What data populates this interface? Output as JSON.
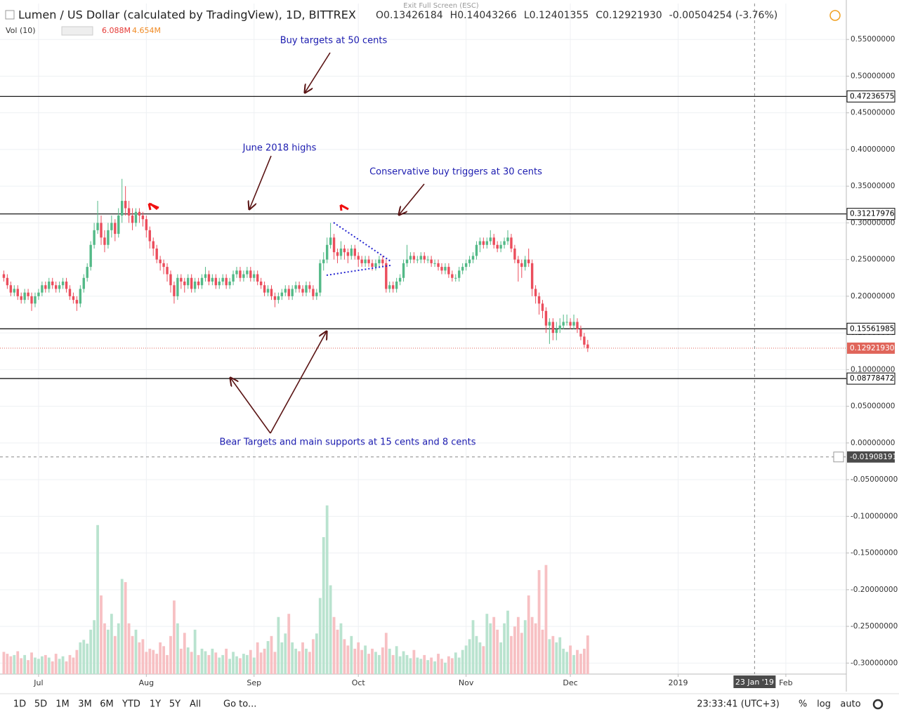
{
  "chart_data": {
    "type": "candlestick",
    "title": "Lumen / US Dollar (calculated by TradingView), 1D, BITTREX",
    "ohlc_legend": [
      {
        "key": "O",
        "value": "0.13426184"
      },
      {
        "key": "H",
        "value": "0.14043266"
      },
      {
        "key": "L",
        "value": "0.12401355"
      },
      {
        "key": "C",
        "value": "0.12921930"
      }
    ],
    "change": "-0.00504254 (-3.76%)",
    "volume_title": "Vol (10)",
    "volume_legend": [
      "6.088M",
      "4.654M"
    ],
    "exit_hint": "Exit Full Screen (ESC)",
    "xlim": [
      -1.1,
      242.4
    ],
    "xticks": [
      {
        "value": 10,
        "label": "Jul"
      },
      {
        "value": 41,
        "label": "Aug"
      },
      {
        "value": 72,
        "label": "Sep"
      },
      {
        "value": 102,
        "label": "Oct"
      },
      {
        "value": 133,
        "label": "Nov"
      },
      {
        "value": 163,
        "label": "Dec"
      },
      {
        "value": 194,
        "label": "2019"
      },
      {
        "value": 225,
        "label": "Feb"
      }
    ],
    "ylim": [
      -0.315,
      0.599
    ],
    "yticks": [
      {
        "value": 0.55,
        "label": "0.55000000"
      },
      {
        "value": 0.5,
        "label": "0.50000000"
      },
      {
        "value": 0.45,
        "label": "0.45000000"
      },
      {
        "value": 0.4,
        "label": "0.40000000"
      },
      {
        "value": 0.35,
        "label": "0.35000000"
      },
      {
        "value": 0.3,
        "label": "0.30000000"
      },
      {
        "value": 0.25,
        "label": "0.25000000"
      },
      {
        "value": 0.2,
        "label": "0.20000000"
      },
      {
        "value": 0.15,
        "label": "0.15000000"
      },
      {
        "value": 0.1,
        "label": "0.10000000"
      },
      {
        "value": 0.05,
        "label": "0.05000000"
      },
      {
        "value": 0,
        "label": "0.00000000"
      },
      {
        "value": -0.05,
        "label": "-0.05000000"
      },
      {
        "value": -0.1,
        "label": "-0.10000000"
      },
      {
        "value": -0.15,
        "label": "-0.15000000"
      },
      {
        "value": -0.2,
        "label": "-0.20000000"
      },
      {
        "value": -0.25,
        "label": "-0.25000000"
      },
      {
        "value": -0.3,
        "label": "-0.30000000"
      }
    ],
    "grid": true,
    "up_color": "#53b987",
    "down_color": "#eb4d5c",
    "vol_up_color": "#b9e3cf",
    "vol_down_color": "#f7c0c3",
    "levels": [
      0.47236575,
      0.31217976,
      0.15561985,
      0.08778472
    ],
    "last_price": {
      "value": 0.1292193,
      "label": "0.12921930"
    },
    "crosshair": {
      "y": -0.01908191,
      "x": {
        "value": 216,
        "label": "23 Jan '19"
      }
    },
    "candles": [
      [
        0.23,
        0.235,
        0.22,
        0.225
      ],
      [
        0.225,
        0.23,
        0.21,
        0.215
      ],
      [
        0.215,
        0.22,
        0.2,
        0.205
      ],
      [
        0.205,
        0.215,
        0.2,
        0.21
      ],
      [
        0.21,
        0.215,
        0.195,
        0.2
      ],
      [
        0.2,
        0.205,
        0.19,
        0.195
      ],
      [
        0.195,
        0.21,
        0.19,
        0.205
      ],
      [
        0.205,
        0.21,
        0.195,
        0.2
      ],
      [
        0.2,
        0.205,
        0.18,
        0.19
      ],
      [
        0.19,
        0.205,
        0.185,
        0.2
      ],
      [
        0.2,
        0.21,
        0.195,
        0.205
      ],
      [
        0.205,
        0.22,
        0.2,
        0.215
      ],
      [
        0.215,
        0.22,
        0.205,
        0.21
      ],
      [
        0.21,
        0.225,
        0.205,
        0.22
      ],
      [
        0.22,
        0.225,
        0.21,
        0.215
      ],
      [
        0.215,
        0.22,
        0.205,
        0.21
      ],
      [
        0.21,
        0.22,
        0.205,
        0.215
      ],
      [
        0.215,
        0.225,
        0.21,
        0.22
      ],
      [
        0.22,
        0.225,
        0.205,
        0.21
      ],
      [
        0.21,
        0.215,
        0.195,
        0.2
      ],
      [
        0.2,
        0.205,
        0.19,
        0.195
      ],
      [
        0.195,
        0.2,
        0.18,
        0.19
      ],
      [
        0.19,
        0.215,
        0.185,
        0.21
      ],
      [
        0.21,
        0.23,
        0.205,
        0.225
      ],
      [
        0.225,
        0.245,
        0.22,
        0.24
      ],
      [
        0.24,
        0.275,
        0.235,
        0.27
      ],
      [
        0.27,
        0.3,
        0.265,
        0.29
      ],
      [
        0.29,
        0.33,
        0.285,
        0.3
      ],
      [
        0.3,
        0.31,
        0.27,
        0.28
      ],
      [
        0.28,
        0.29,
        0.26,
        0.27
      ],
      [
        0.27,
        0.3,
        0.265,
        0.29
      ],
      [
        0.29,
        0.31,
        0.28,
        0.3
      ],
      [
        0.3,
        0.305,
        0.275,
        0.285
      ],
      [
        0.285,
        0.32,
        0.28,
        0.31
      ],
      [
        0.31,
        0.36,
        0.3,
        0.33
      ],
      [
        0.33,
        0.35,
        0.31,
        0.32
      ],
      [
        0.32,
        0.33,
        0.3,
        0.31
      ],
      [
        0.31,
        0.32,
        0.29,
        0.3
      ],
      [
        0.3,
        0.32,
        0.295,
        0.315
      ],
      [
        0.315,
        0.32,
        0.3,
        0.31
      ],
      [
        0.31,
        0.315,
        0.295,
        0.305
      ],
      [
        0.305,
        0.31,
        0.28,
        0.29
      ],
      [
        0.29,
        0.295,
        0.265,
        0.275
      ],
      [
        0.275,
        0.28,
        0.255,
        0.265
      ],
      [
        0.265,
        0.27,
        0.245,
        0.25
      ],
      [
        0.25,
        0.255,
        0.235,
        0.245
      ],
      [
        0.245,
        0.25,
        0.23,
        0.24
      ],
      [
        0.24,
        0.245,
        0.22,
        0.23
      ],
      [
        0.23,
        0.235,
        0.205,
        0.215
      ],
      [
        0.215,
        0.22,
        0.19,
        0.2
      ],
      [
        0.2,
        0.23,
        0.195,
        0.225
      ],
      [
        0.225,
        0.23,
        0.21,
        0.22
      ],
      [
        0.22,
        0.225,
        0.205,
        0.215
      ],
      [
        0.215,
        0.23,
        0.21,
        0.225
      ],
      [
        0.225,
        0.23,
        0.205,
        0.21
      ],
      [
        0.21,
        0.225,
        0.205,
        0.22
      ],
      [
        0.22,
        0.225,
        0.21,
        0.215
      ],
      [
        0.215,
        0.23,
        0.21,
        0.225
      ],
      [
        0.225,
        0.24,
        0.22,
        0.23
      ],
      [
        0.23,
        0.235,
        0.215,
        0.22
      ],
      [
        0.22,
        0.23,
        0.215,
        0.225
      ],
      [
        0.225,
        0.23,
        0.21,
        0.215
      ],
      [
        0.215,
        0.225,
        0.21,
        0.22
      ],
      [
        0.22,
        0.23,
        0.215,
        0.225
      ],
      [
        0.225,
        0.23,
        0.21,
        0.215
      ],
      [
        0.215,
        0.225,
        0.21,
        0.22
      ],
      [
        0.22,
        0.235,
        0.215,
        0.23
      ],
      [
        0.23,
        0.24,
        0.225,
        0.235
      ],
      [
        0.235,
        0.24,
        0.22,
        0.225
      ],
      [
        0.225,
        0.235,
        0.22,
        0.23
      ],
      [
        0.23,
        0.24,
        0.225,
        0.235
      ],
      [
        0.235,
        0.24,
        0.22,
        0.225
      ],
      [
        0.225,
        0.235,
        0.22,
        0.23
      ],
      [
        0.23,
        0.235,
        0.215,
        0.22
      ],
      [
        0.22,
        0.225,
        0.21,
        0.215
      ],
      [
        0.215,
        0.22,
        0.2,
        0.205
      ],
      [
        0.205,
        0.215,
        0.2,
        0.21
      ],
      [
        0.21,
        0.215,
        0.195,
        0.2
      ],
      [
        0.2,
        0.205,
        0.185,
        0.195
      ],
      [
        0.195,
        0.205,
        0.19,
        0.2
      ],
      [
        0.2,
        0.21,
        0.195,
        0.205
      ],
      [
        0.205,
        0.215,
        0.2,
        0.21
      ],
      [
        0.21,
        0.215,
        0.195,
        0.2
      ],
      [
        0.2,
        0.215,
        0.195,
        0.21
      ],
      [
        0.21,
        0.22,
        0.205,
        0.215
      ],
      [
        0.215,
        0.22,
        0.205,
        0.21
      ],
      [
        0.21,
        0.215,
        0.2,
        0.205
      ],
      [
        0.205,
        0.22,
        0.2,
        0.215
      ],
      [
        0.215,
        0.22,
        0.205,
        0.21
      ],
      [
        0.21,
        0.215,
        0.195,
        0.2
      ],
      [
        0.2,
        0.21,
        0.195,
        0.205
      ],
      [
        0.205,
        0.25,
        0.2,
        0.245
      ],
      [
        0.245,
        0.26,
        0.235,
        0.25
      ],
      [
        0.25,
        0.28,
        0.245,
        0.27
      ],
      [
        0.27,
        0.3,
        0.265,
        0.28
      ],
      [
        0.28,
        0.285,
        0.25,
        0.26
      ],
      [
        0.26,
        0.265,
        0.245,
        0.255
      ],
      [
        0.255,
        0.275,
        0.25,
        0.265
      ],
      [
        0.265,
        0.27,
        0.25,
        0.26
      ],
      [
        0.26,
        0.265,
        0.245,
        0.255
      ],
      [
        0.255,
        0.27,
        0.25,
        0.265
      ],
      [
        0.265,
        0.27,
        0.25,
        0.255
      ],
      [
        0.255,
        0.26,
        0.24,
        0.25
      ],
      [
        0.25,
        0.255,
        0.24,
        0.245
      ],
      [
        0.245,
        0.255,
        0.24,
        0.25
      ],
      [
        0.25,
        0.255,
        0.24,
        0.245
      ],
      [
        0.245,
        0.25,
        0.235,
        0.24
      ],
      [
        0.24,
        0.25,
        0.235,
        0.245
      ],
      [
        0.245,
        0.255,
        0.24,
        0.25
      ],
      [
        0.25,
        0.255,
        0.24,
        0.245
      ],
      [
        0.245,
        0.25,
        0.205,
        0.21
      ],
      [
        0.21,
        0.22,
        0.205,
        0.215
      ],
      [
        0.215,
        0.22,
        0.205,
        0.21
      ],
      [
        0.21,
        0.225,
        0.205,
        0.22
      ],
      [
        0.22,
        0.23,
        0.215,
        0.225
      ],
      [
        0.225,
        0.25,
        0.22,
        0.245
      ],
      [
        0.245,
        0.27,
        0.24,
        0.25
      ],
      [
        0.25,
        0.26,
        0.245,
        0.255
      ],
      [
        0.255,
        0.26,
        0.245,
        0.25
      ],
      [
        0.25,
        0.255,
        0.245,
        0.25
      ],
      [
        0.25,
        0.26,
        0.245,
        0.255
      ],
      [
        0.255,
        0.26,
        0.245,
        0.25
      ],
      [
        0.25,
        0.255,
        0.245,
        0.25
      ],
      [
        0.25,
        0.255,
        0.24,
        0.245
      ],
      [
        0.245,
        0.25,
        0.24,
        0.245
      ],
      [
        0.245,
        0.25,
        0.235,
        0.24
      ],
      [
        0.24,
        0.245,
        0.23,
        0.235
      ],
      [
        0.235,
        0.245,
        0.23,
        0.24
      ],
      [
        0.24,
        0.245,
        0.225,
        0.23
      ],
      [
        0.23,
        0.235,
        0.22,
        0.225
      ],
      [
        0.225,
        0.23,
        0.22,
        0.225
      ],
      [
        0.225,
        0.24,
        0.22,
        0.235
      ],
      [
        0.235,
        0.245,
        0.23,
        0.24
      ],
      [
        0.24,
        0.25,
        0.235,
        0.245
      ],
      [
        0.245,
        0.255,
        0.24,
        0.25
      ],
      [
        0.25,
        0.26,
        0.245,
        0.255
      ],
      [
        0.255,
        0.275,
        0.25,
        0.27
      ],
      [
        0.27,
        0.28,
        0.26,
        0.275
      ],
      [
        0.275,
        0.28,
        0.265,
        0.27
      ],
      [
        0.27,
        0.28,
        0.265,
        0.275
      ],
      [
        0.275,
        0.29,
        0.27,
        0.28
      ],
      [
        0.28,
        0.285,
        0.265,
        0.27
      ],
      [
        0.27,
        0.275,
        0.26,
        0.265
      ],
      [
        0.265,
        0.275,
        0.26,
        0.27
      ],
      [
        0.27,
        0.28,
        0.265,
        0.275
      ],
      [
        0.275,
        0.29,
        0.27,
        0.28
      ],
      [
        0.28,
        0.285,
        0.26,
        0.265
      ],
      [
        0.265,
        0.27,
        0.245,
        0.25
      ],
      [
        0.25,
        0.255,
        0.22,
        0.245
      ],
      [
        0.245,
        0.25,
        0.225,
        0.24
      ],
      [
        0.24,
        0.255,
        0.235,
        0.25
      ],
      [
        0.25,
        0.265,
        0.24,
        0.245
      ],
      [
        0.245,
        0.25,
        0.2,
        0.21
      ],
      [
        0.21,
        0.215,
        0.19,
        0.2
      ],
      [
        0.2,
        0.205,
        0.175,
        0.19
      ],
      [
        0.19,
        0.195,
        0.17,
        0.18
      ],
      [
        0.18,
        0.185,
        0.15,
        0.16
      ],
      [
        0.16,
        0.17,
        0.135,
        0.165
      ],
      [
        0.165,
        0.17,
        0.14,
        0.15
      ],
      [
        0.15,
        0.165,
        0.14,
        0.155
      ],
      [
        0.155,
        0.17,
        0.15,
        0.16
      ],
      [
        0.16,
        0.175,
        0.155,
        0.165
      ],
      [
        0.165,
        0.175,
        0.16,
        0.165
      ],
      [
        0.165,
        0.17,
        0.155,
        0.16
      ],
      [
        0.16,
        0.175,
        0.155,
        0.165
      ],
      [
        0.165,
        0.17,
        0.15,
        0.155
      ],
      [
        0.155,
        0.16,
        0.14,
        0.145
      ],
      [
        0.145,
        0.15,
        0.13,
        0.134
      ],
      [
        0.13426184,
        0.14043266,
        0.12401355,
        0.1292193
      ]
    ],
    "volume": [
      3.5,
      3.2,
      2.8,
      3,
      3.6,
      2.5,
      3,
      2.2,
      3.4,
      2.6,
      2.4,
      2.8,
      3,
      2.6,
      2,
      3.2,
      2.4,
      2.8,
      2,
      3,
      2.6,
      3.8,
      5,
      5.4,
      4.8,
      7,
      8.5,
      23.5,
      12.4,
      8,
      7,
      9.5,
      6,
      8,
      15,
      14.5,
      8,
      6,
      7,
      5,
      5.5,
      3.5,
      4,
      3.8,
      3.2,
      5,
      4.4,
      3,
      6,
      11.6,
      8,
      4,
      6.5,
      4.2,
      3.5,
      7,
      3,
      4,
      3.6,
      3,
      4,
      3.4,
      2.6,
      3,
      4,
      2.4,
      3.5,
      2.8,
      2.5,
      3.2,
      3,
      3.8,
      2.6,
      5,
      3.4,
      4,
      5.2,
      6,
      3.5,
      9,
      5,
      6.4,
      9.5,
      5,
      4,
      3.6,
      5,
      4,
      3.5,
      5.5,
      6.4,
      12,
      21.6,
      26.6,
      14,
      9,
      7,
      8,
      5.5,
      4.5,
      6,
      4,
      5,
      3.8,
      4.5,
      3.2,
      4,
      3.5,
      3,
      4.2,
      6.5,
      4,
      3,
      4.4,
      2.8,
      3.6,
      3,
      2.5,
      3.8,
      2.6,
      2.4,
      3,
      2.2,
      2.6,
      2,
      3.2,
      2.4,
      1.8,
      2.8,
      2.5,
      3.4,
      2.6,
      3.8,
      4.5,
      5.5,
      8.5,
      6,
      5,
      4.4,
      9.5,
      8,
      9,
      7,
      5,
      8,
      10,
      6,
      7.5,
      9,
      6.5,
      8.5,
      12.4,
      9,
      8,
      16.4,
      7,
      17.2,
      5.5,
      6,
      5,
      5.8,
      4,
      3.5,
      4.5,
      3,
      3.8,
      3.2,
      4,
      6.088
    ],
    "annotations": [
      "Buy targets at 50 cents",
      "June 2018 highs",
      "Conservative buy triggers at 30 cents",
      "Bear Targets and main supports at 15 cents and 8 cents"
    ],
    "toolbar": {
      "ranges": [
        "1D",
        "5D",
        "1M",
        "3M",
        "6M",
        "YTD",
        "1Y",
        "5Y",
        "All"
      ],
      "goto": "Go to...",
      "time": "23:33:41 (UTC+3)",
      "options": [
        "%",
        "log",
        "auto"
      ]
    }
  }
}
